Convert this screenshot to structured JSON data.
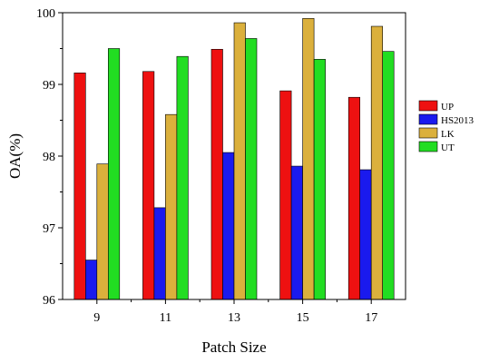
{
  "chart_data": {
    "type": "bar",
    "title": "",
    "xlabel": "Patch Size",
    "ylabel": "OA(%)",
    "categories": [
      "9",
      "11",
      "13",
      "15",
      "17"
    ],
    "ylim": [
      96,
      100
    ],
    "yticks": [
      "96",
      "97",
      "98",
      "99",
      "100"
    ],
    "grid": false,
    "legend_position": "right",
    "series": [
      {
        "name": "UP",
        "color": "#ee1111",
        "values": [
          99.16,
          99.18,
          99.49,
          98.91,
          98.82
        ]
      },
      {
        "name": "HS2013",
        "color": "#1a1aee",
        "values": [
          96.55,
          97.28,
          98.05,
          97.86,
          97.81
        ]
      },
      {
        "name": "LK",
        "color": "#dbb03c",
        "values": [
          97.89,
          98.58,
          99.86,
          99.92,
          99.81
        ]
      },
      {
        "name": "UT",
        "color": "#22dd22",
        "values": [
          99.5,
          99.39,
          99.64,
          99.35,
          99.46
        ]
      }
    ]
  }
}
